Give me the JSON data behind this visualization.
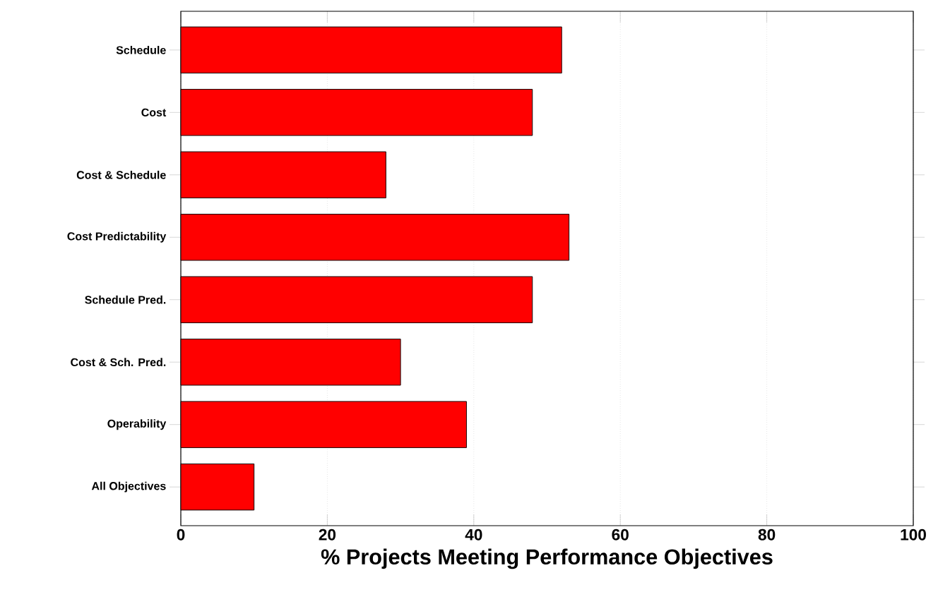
{
  "chart_data": {
    "type": "bar",
    "orientation": "horizontal",
    "xlabel": "% Projects Meeting Performance Objectives",
    "categories": [
      "Schedule",
      "Cost",
      "Cost & Schedule",
      "Cost Predictability",
      "Schedule Pred.",
      "Cost & Sch. Pred.",
      "Operability",
      "All Objectives"
    ],
    "values": [
      52,
      48,
      28,
      53,
      48,
      30,
      39,
      10
    ],
    "color": "#ff0000",
    "xlim": [
      0,
      100
    ],
    "xticks": [
      0,
      20,
      40,
      60,
      80,
      100
    ],
    "grid": "x"
  }
}
